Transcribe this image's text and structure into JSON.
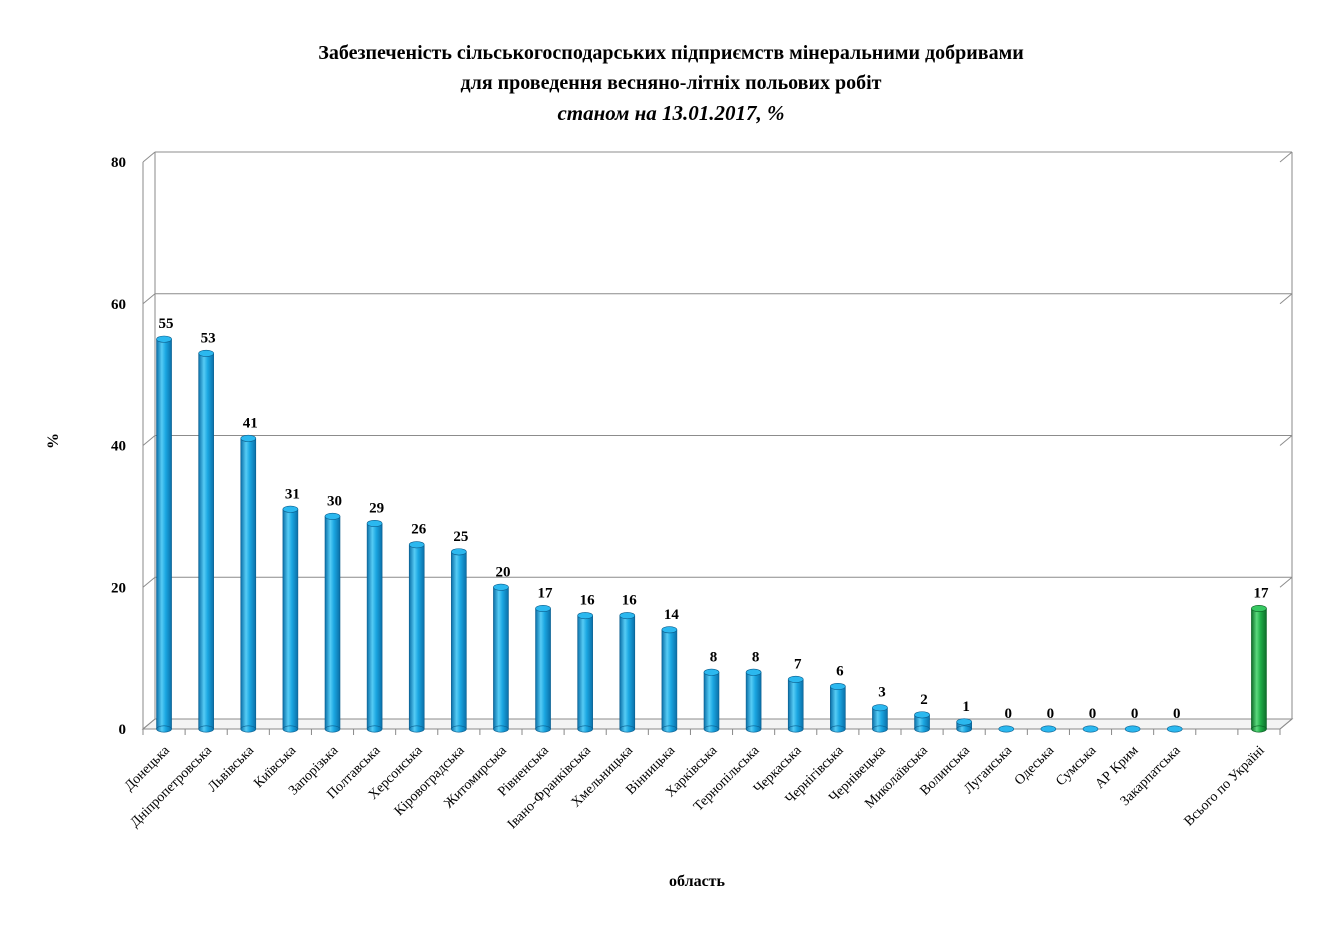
{
  "chart_data": {
    "type": "bar",
    "title": "Забезпеченість сільськогосподарських підприємств мінеральними добривами",
    "title_line2": "для проведення весняно-літніх польових робіт",
    "subtitle": "станом на 13.01.2017, %",
    "xlabel": "область",
    "ylabel": "%",
    "ylim": [
      0,
      80
    ],
    "yticks": [
      0,
      20,
      40,
      60,
      80
    ],
    "grid": true,
    "categories": [
      "Донецька",
      "Дніпропетровська",
      "Львівська",
      "Київська",
      "Запорізька",
      "Полтавська",
      "Херсонська",
      "Кіровоградська",
      "Житомирська",
      "Рівненська",
      "Івано-Франківська",
      "Хмельницька",
      "Вінницька",
      "Харківська",
      "Тернопільська",
      "Черкаська",
      "Чернігівська",
      "Чернівецька",
      "Миколаївська",
      "Волинська",
      "Луганська",
      "Одеська",
      "Сумська",
      "АР Крим",
      "Закарпатська",
      "",
      "Всього по Україні"
    ],
    "values": [
      55,
      53,
      41,
      31,
      30,
      29,
      26,
      25,
      20,
      17,
      16,
      16,
      14,
      8,
      8,
      7,
      6,
      3,
      2,
      1,
      0,
      0,
      0,
      0,
      0,
      null,
      17
    ],
    "colors": {
      "regions": "#1ba7e2",
      "total": "#1fae48"
    }
  }
}
